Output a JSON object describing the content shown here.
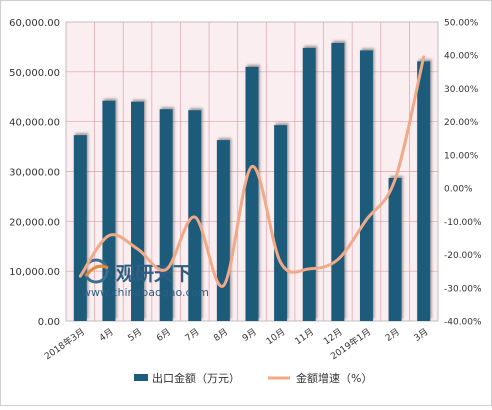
{
  "chart_data": {
    "type": "bar",
    "categories": [
      "2018年3月",
      "4月",
      "5月",
      "6月",
      "7月",
      "8月",
      "9月",
      "10月",
      "11月",
      "12月",
      "2019年1月",
      "2月",
      "3月"
    ],
    "series": [
      {
        "name": "出口金额（万元）",
        "type": "bar",
        "axis": "left",
        "color": "#1f5b7a",
        "values": [
          37300,
          44200,
          44000,
          42500,
          42300,
          36300,
          51000,
          39300,
          54800,
          55800,
          54300,
          28700,
          52100
        ]
      },
      {
        "name": "金额增速（%）",
        "type": "line",
        "axis": "right",
        "color": "#f2a987",
        "values": [
          -26.5,
          -14.3,
          -18.3,
          -24.5,
          -8.7,
          -29.4,
          6.5,
          -22.4,
          -24.3,
          -21.5,
          -9.5,
          2.6,
          39.5
        ]
      }
    ],
    "y_left": {
      "min": 0,
      "max": 60000,
      "ticks": [
        "0.00",
        "10,000.00",
        "20,000.00",
        "30,000.00",
        "40,000.00",
        "50,000.00",
        "60,000.00"
      ]
    },
    "y_right": {
      "min": -40,
      "max": 50,
      "ticks": [
        "-40.00%",
        "-30.00%",
        "-20.00%",
        "-10.00%",
        "0.00%",
        "10.00%",
        "20.00%",
        "30.00%",
        "40.00%",
        "50.00%"
      ]
    },
    "grid": true,
    "legend_position": "bottom",
    "plot_background": "#fbeef0",
    "gridline_color": "#d9a3ad"
  },
  "watermark": {
    "brand": "观研天下",
    "url": "www.chinabaogao.com"
  }
}
